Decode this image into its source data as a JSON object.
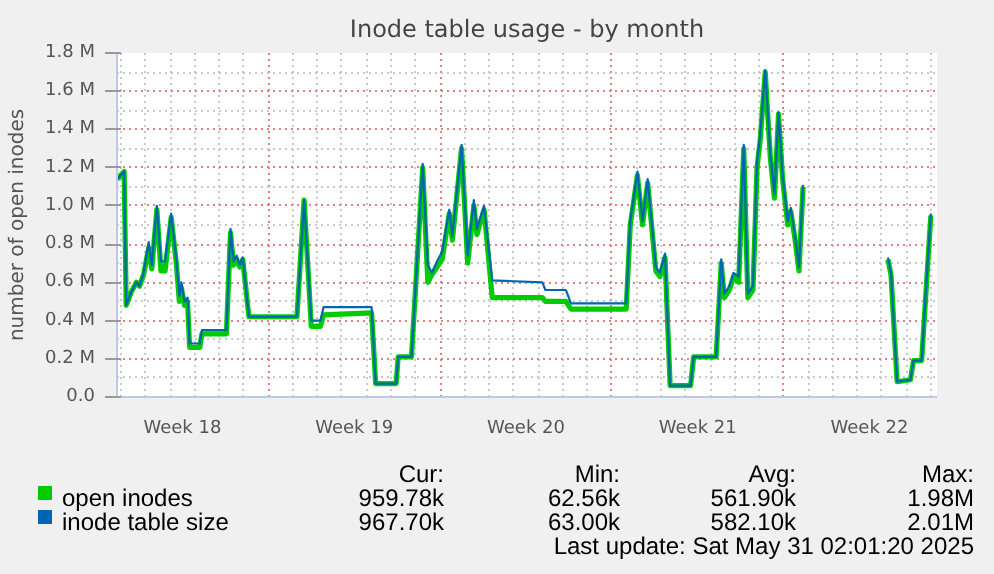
{
  "chart_data": {
    "type": "line",
    "title": "Inode table usage - by month",
    "ylabel": "number of open inodes",
    "x": [
      "2025-04-28T20:00",
      "2025-04-29T03:00",
      "2025-04-29T05:00",
      "2025-04-29T10:00",
      "2025-04-29T15:00",
      "2025-04-29T18:00",
      "2025-04-29T22:00",
      "2025-04-30T03:00",
      "2025-04-30T06:00",
      "2025-04-30T11:00",
      "2025-04-30T15:00",
      "2025-04-30T19:00",
      "2025-05-01T01:00",
      "2025-05-01T06:00",
      "2025-05-01T09:00",
      "2025-05-01T11:00",
      "2025-05-01T14:00",
      "2025-05-01T17:00",
      "2025-05-01T19:00",
      "2025-05-02T05:00",
      "2025-05-02T07:00",
      "2025-05-03T07:00",
      "2025-05-03T11:00",
      "2025-05-03T14:00",
      "2025-05-03T17:00",
      "2025-05-03T20:00",
      "2025-05-03T23:00",
      "2025-05-04T05:00",
      "2025-05-06T04:00",
      "2025-05-06T11:00",
      "2025-05-06T18:00",
      "2025-05-07T03:00",
      "2025-05-07T06:00",
      "2025-05-09T05:00",
      "2025-05-09T09:00",
      "2025-05-10T05:00",
      "2025-05-10T07:00",
      "2025-05-10T20:00",
      "2025-05-11T07:00",
      "2025-05-11T12:00",
      "2025-05-11T16:00",
      "2025-05-11T21:00",
      "2025-05-12T02:00",
      "2025-05-12T09:00",
      "2025-05-12T12:00",
      "2025-05-12T21:00",
      "2025-05-13T03:00",
      "2025-05-13T09:00",
      "2025-05-13T12:00",
      "2025-05-13T19:00",
      "2025-05-14T03:00",
      "2025-05-16T04:00",
      "2025-05-16T07:00",
      "2025-05-17T03:00",
      "2025-05-17T08:00",
      "2025-05-19T14:00",
      "2025-05-19T18:00",
      "2025-05-20T01:00",
      "2025-05-20T06:00",
      "2025-05-20T11:00",
      "2025-05-20T19:00",
      "2025-05-20T23:00",
      "2025-05-21T04:00",
      "2025-05-21T09:00",
      "2025-05-22T05:00",
      "2025-05-22T08:00",
      "2025-05-23T06:00",
      "2025-05-23T11:00",
      "2025-05-23T14:00",
      "2025-05-23T19:00",
      "2025-05-23T23:00",
      "2025-05-24T04:00",
      "2025-05-24T09:00",
      "2025-05-24T13:00",
      "2025-05-24T18:00",
      "2025-05-24T22:00",
      "2025-05-25T01:00",
      "2025-05-25T06:00",
      "2025-05-25T11:00",
      "2025-05-25T15:00",
      "2025-05-25T19:00",
      "2025-05-25T23:00",
      "2025-05-26T04:00",
      "2025-05-26T07:00",
      "2025-05-26T11:00",
      "2025-05-26T15:00",
      "2025-05-26T19:00",
      "2025-05-28T13:00",
      "2025-05-30T06:00",
      "2025-05-30T09:00",
      "2025-05-30T15:00",
      "2025-05-31T04:00",
      "2025-05-31T07:00",
      "2025-05-31T15:00",
      "2025-05-31T21:00",
      "2025-06-01T00:00"
    ],
    "series": [
      {
        "name": "open inodes",
        "color": "#00cc00",
        "values": [
          1.14,
          1.18,
          0.48,
          0.55,
          0.6,
          0.58,
          0.64,
          0.78,
          0.67,
          0.98,
          0.66,
          0.66,
          0.94,
          0.7,
          0.5,
          0.57,
          0.48,
          0.5,
          0.26,
          0.26,
          0.33,
          0.33,
          0.86,
          0.69,
          0.72,
          0.68,
          0.72,
          0.42,
          0.42,
          1.03,
          0.37,
          0.37,
          0.43,
          0.44,
          0.07,
          0.07,
          0.21,
          0.21,
          1.2,
          0.6,
          0.64,
          0.68,
          0.72,
          0.96,
          0.82,
          1.3,
          0.7,
          1.0,
          0.85,
          0.98,
          0.52,
          0.52,
          0.5,
          0.5,
          0.46,
          0.46,
          0.9,
          1.16,
          0.9,
          1.12,
          0.66,
          0.63,
          0.73,
          0.06,
          0.06,
          0.21,
          0.21,
          0.7,
          0.52,
          0.56,
          0.63,
          0.6,
          1.3,
          0.52,
          0.56,
          1.2,
          1.34,
          1.7,
          1.25,
          1.04,
          1.48,
          1.14,
          0.9,
          0.97,
          0.83,
          0.66,
          1.1,
          null,
          0.72,
          0.64,
          0.08,
          0.09,
          0.19,
          0.19,
          0.7,
          0.95
        ]
      },
      {
        "name": "inode table size",
        "color": "#0066b3",
        "values": [
          1.14,
          1.18,
          0.48,
          0.55,
          0.6,
          0.58,
          0.65,
          0.81,
          0.69,
          1.0,
          0.71,
          0.71,
          0.96,
          0.72,
          0.53,
          0.6,
          0.5,
          0.52,
          0.28,
          0.28,
          0.35,
          0.35,
          0.88,
          0.71,
          0.74,
          0.69,
          0.73,
          0.42,
          0.42,
          1.03,
          0.4,
          0.4,
          0.47,
          0.47,
          0.07,
          0.07,
          0.21,
          0.21,
          1.22,
          0.69,
          0.65,
          0.71,
          0.76,
          0.98,
          0.84,
          1.32,
          0.74,
          1.03,
          0.88,
          1.0,
          0.61,
          0.6,
          0.56,
          0.56,
          0.49,
          0.49,
          0.92,
          1.18,
          0.92,
          1.14,
          0.68,
          0.65,
          0.75,
          0.06,
          0.06,
          0.21,
          0.21,
          0.72,
          0.54,
          0.58,
          0.65,
          0.63,
          1.32,
          0.54,
          0.58,
          1.23,
          1.37,
          1.71,
          1.27,
          1.06,
          1.49,
          1.16,
          0.92,
          0.99,
          0.85,
          0.68,
          1.11,
          null,
          0.73,
          0.65,
          0.08,
          0.09,
          0.19,
          0.19,
          0.72,
          0.96
        ]
      }
    ],
    "xlim": [
      "2025-04-28T20:00",
      "2025-06-01T06:00"
    ],
    "xticks": [
      {
        "value": "2025-05-01T12:00",
        "label": "Week 18"
      },
      {
        "value": "2025-05-05",
        "label": null
      },
      {
        "value": "2025-05-08T12:00",
        "label": "Week 19"
      },
      {
        "value": "2025-05-12",
        "label": null
      },
      {
        "value": "2025-05-15T12:00",
        "label": "Week 20"
      },
      {
        "value": "2025-05-19",
        "label": null
      },
      {
        "value": "2025-05-22T12:00",
        "label": "Week 21"
      },
      {
        "value": "2025-05-26",
        "label": null
      },
      {
        "value": "2025-05-29T12:00",
        "label": "Week 22"
      }
    ],
    "ylim": [
      0,
      1.8
    ],
    "yticks": [
      {
        "value": 0,
        "label": "0.0"
      },
      {
        "value": 0.2,
        "label": "0.2 M"
      },
      {
        "value": 0.4,
        "label": "0.4 M"
      },
      {
        "value": 0.6,
        "label": "0.6 M"
      },
      {
        "value": 0.8,
        "label": "0.8 M"
      },
      {
        "value": 1.0,
        "label": "1.0 M"
      },
      {
        "value": 1.2,
        "label": "1.2 M"
      },
      {
        "value": 1.4,
        "label": "1.4 M"
      },
      {
        "value": 1.6,
        "label": "1.6 M"
      },
      {
        "value": 1.8,
        "label": "1.8 M"
      }
    ],
    "grid": true,
    "legend": "bottom",
    "annotations": [
      "Cur:",
      "Min:",
      "Avg:",
      "Max:",
      "959.78k",
      "62.56k",
      "561.90k",
      "1.98M",
      "967.70k",
      "63.00k",
      "582.10k",
      "2.01M",
      "Last update: Sat May 31 02:01:20 2025"
    ]
  }
}
